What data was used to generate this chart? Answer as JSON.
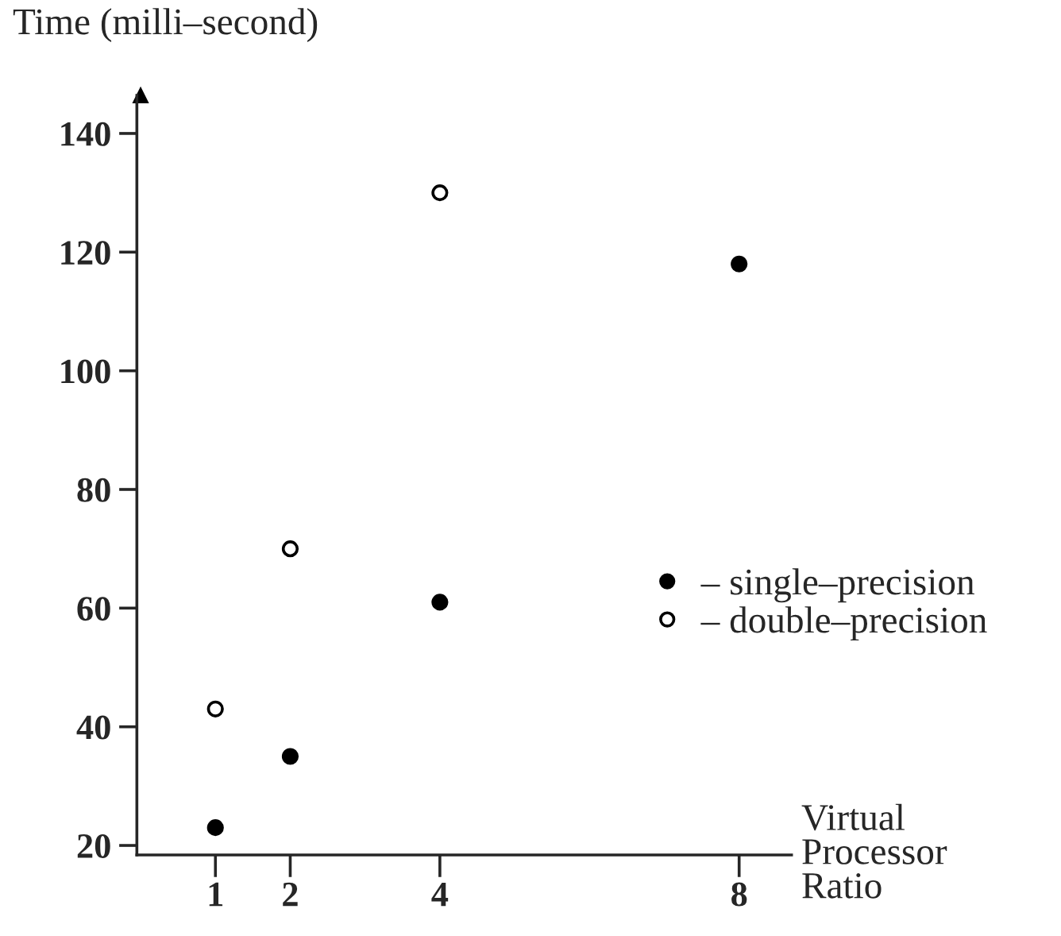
{
  "chart_data": {
    "type": "scatter",
    "ylabel": "Time (milli–second)",
    "xlabel": "Virtual\nProcessor\nRatio",
    "x": [
      1,
      2,
      4,
      8
    ],
    "series": [
      {
        "name": "– single–precision",
        "color": "#000000",
        "values": [
          23,
          35,
          61,
          118
        ]
      },
      {
        "name": "– double–precision",
        "color": "#ffffff",
        "values": [
          43,
          70,
          130,
          null
        ]
      }
    ],
    "xlim": [
      -0.05,
      8.7
    ],
    "xticks": [
      1,
      2,
      4,
      8
    ],
    "ylim": [
      18.4,
      146.4
    ],
    "yticks": [
      20,
      40,
      60,
      80,
      100,
      120,
      140
    ],
    "marker": "circle",
    "grid": false,
    "legend": "right"
  }
}
